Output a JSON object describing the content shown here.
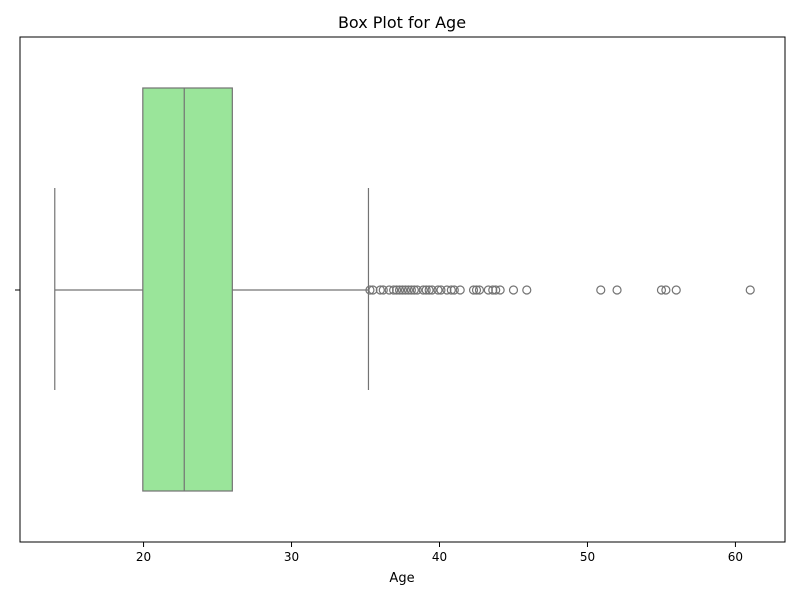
{
  "chart_data": {
    "type": "box",
    "title": "Box Plot for Age",
    "xlabel": "Age",
    "ylabel": "",
    "xlim": [
      11.65,
      63.35
    ],
    "xticks": [
      20,
      30,
      40,
      50,
      60
    ],
    "orientation": "horizontal",
    "box_color": "#9ae59a",
    "line_color": "#737373",
    "stats": {
      "whislo": 14,
      "q1": 19.95,
      "median": 22.75,
      "q3": 26,
      "whishi": 35.2
    },
    "outliers": [
      35.3,
      35.5,
      36,
      36.2,
      36.6,
      36.9,
      37.1,
      37.3,
      37.5,
      37.7,
      37.9,
      38.1,
      38.3,
      38.5,
      38.9,
      39.1,
      39.3,
      39.5,
      39.9,
      40.1,
      40.5,
      40.8,
      41,
      41.4,
      42.3,
      42.5,
      42.7,
      43.3,
      43.6,
      43.8,
      44.1,
      45,
      45.9,
      50.9,
      52,
      55,
      55.3,
      56,
      61
    ]
  }
}
